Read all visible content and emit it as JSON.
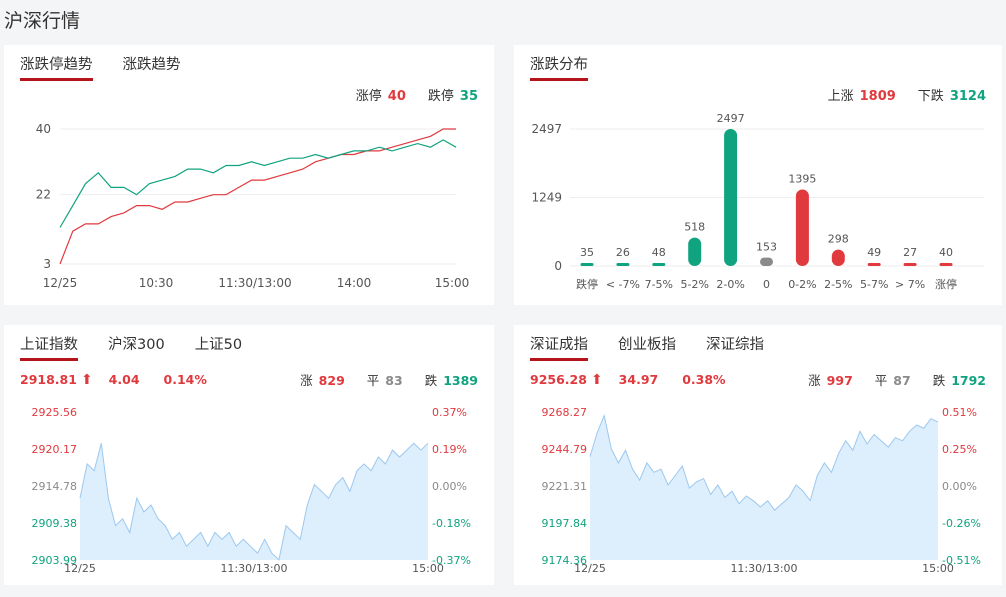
{
  "page_title": "沪深行情",
  "colors": {
    "up": "#e0393e",
    "down": "#10a37f",
    "flat": "#8a8a8a",
    "accent": "#b5141b",
    "area": "#ddeefc"
  },
  "limit_trend": {
    "tabs": [
      {
        "label": "涨跌停趋势",
        "active": true
      },
      {
        "label": "涨跌趋势",
        "active": false
      }
    ],
    "legend": {
      "up_label": "涨停",
      "up_value": "40",
      "down_label": "跌停",
      "down_value": "35"
    },
    "chart_data": {
      "type": "line",
      "y_ticks": [
        "40",
        "22",
        "3"
      ],
      "ylim": [
        3,
        40
      ],
      "x_ticks": [
        "12/25",
        "10:30",
        "11:30/13:00",
        "14:00",
        "15:00"
      ],
      "series": [
        {
          "color": "#e0393e",
          "values": [
            3,
            12,
            14,
            14,
            16,
            17,
            19,
            19,
            18,
            20,
            20,
            21,
            22,
            22,
            24,
            26,
            26,
            27,
            28,
            29,
            31,
            32,
            33,
            33,
            34,
            34,
            35,
            36,
            37,
            38,
            40,
            40
          ]
        },
        {
          "color": "#10a37f",
          "values": [
            13,
            19,
            25,
            28,
            24,
            24,
            22,
            25,
            26,
            27,
            29,
            29,
            28,
            30,
            30,
            31,
            30,
            31,
            32,
            32,
            33,
            32,
            33,
            34,
            34,
            35,
            34,
            35,
            36,
            35,
            37,
            35
          ]
        }
      ]
    }
  },
  "distribution": {
    "tabs": [
      {
        "label": "涨跌分布",
        "active": true
      }
    ],
    "legend": {
      "up_label": "上涨",
      "up_value": "1809",
      "down_label": "下跌",
      "down_value": "3124"
    },
    "chart_data": {
      "type": "bar",
      "y_ticks": [
        "2497",
        "1249",
        "0"
      ],
      "ylim": [
        0,
        2497
      ],
      "categories": [
        "跌停",
        "< -7%",
        "7-5%",
        "5-2%",
        "2-0%",
        "0",
        "0-2%",
        "2-5%",
        "5-7%",
        "> 7%",
        "涨停"
      ],
      "values": [
        35,
        26,
        48,
        518,
        2497,
        153,
        1395,
        298,
        49,
        27,
        40
      ],
      "labels": [
        "35",
        "26",
        "48",
        "518",
        "2497",
        "153",
        "1395",
        "298",
        "49",
        "27",
        "40"
      ],
      "bar_colors": [
        "#10a37f",
        "#10a37f",
        "#10a37f",
        "#10a37f",
        "#10a37f",
        "#8a8a8a",
        "#e0393e",
        "#e0393e",
        "#e0393e",
        "#e0393e",
        "#e0393e"
      ]
    }
  },
  "sh_index": {
    "tabs": [
      {
        "label": "上证指数",
        "active": true
      },
      {
        "label": "沪深300",
        "active": false
      },
      {
        "label": "上证50",
        "active": false
      }
    ],
    "price": "2918.81",
    "arrow": "⬆",
    "change": "4.04",
    "pct": "0.14%",
    "stats": {
      "up_label": "涨",
      "up_value": "829",
      "flat_label": "平",
      "flat_value": "83",
      "down_label": "跌",
      "down_value": "1389"
    },
    "chart_data": {
      "type": "area",
      "y_ticks_left": [
        "2925.56",
        "2920.17",
        "2914.78",
        "2909.38",
        "2903.99"
      ],
      "y_ticks_right": [
        "0.37%",
        "0.19%",
        "0.00%",
        "-0.18%",
        "-0.37%"
      ],
      "ylim": [
        2903.99,
        2925.56
      ],
      "x_ticks": [
        "12/25",
        "11:30/13:00",
        "15:00"
      ],
      "values": [
        2913,
        2918,
        2917,
        2921,
        2913,
        2909,
        2910,
        2908,
        2913,
        2911,
        2912,
        2910,
        2909,
        2907,
        2908,
        2906,
        2907,
        2908,
        2906,
        2908,
        2907,
        2908,
        2906,
        2907,
        2906,
        2905,
        2907,
        2905,
        2904,
        2909,
        2908,
        2907,
        2912,
        2915,
        2914,
        2913,
        2915,
        2916,
        2914,
        2917,
        2918,
        2917,
        2919,
        2918,
        2920,
        2919,
        2920,
        2921,
        2920,
        2921
      ]
    }
  },
  "sz_index": {
    "tabs": [
      {
        "label": "深证成指",
        "active": true
      },
      {
        "label": "创业板指",
        "active": false
      },
      {
        "label": "深证综指",
        "active": false
      }
    ],
    "price": "9256.28",
    "arrow": "⬆",
    "change": "34.97",
    "pct": "0.38%",
    "stats": {
      "up_label": "涨",
      "up_value": "997",
      "flat_label": "平",
      "flat_value": "87",
      "down_label": "跌",
      "down_value": "1792"
    },
    "chart_data": {
      "type": "area",
      "y_ticks_left": [
        "9268.27",
        "9244.79",
        "9221.31",
        "9197.84",
        "9174.36"
      ],
      "y_ticks_right": [
        "0.51%",
        "0.25%",
        "0.00%",
        "-0.26%",
        "-0.51%"
      ],
      "ylim": [
        9174.36,
        9268.27
      ],
      "x_ticks": [
        "12/25",
        "11:30/13:00",
        "15:00"
      ],
      "values": [
        9240,
        9255,
        9266,
        9245,
        9236,
        9244,
        9232,
        9225,
        9236,
        9230,
        9232,
        9222,
        9228,
        9234,
        9220,
        9224,
        9226,
        9216,
        9222,
        9214,
        9218,
        9210,
        9215,
        9212,
        9208,
        9212,
        9206,
        9210,
        9214,
        9222,
        9218,
        9212,
        9228,
        9236,
        9230,
        9242,
        9250,
        9244,
        9256,
        9248,
        9254,
        9250,
        9246,
        9252,
        9250,
        9256,
        9260,
        9258,
        9264,
        9262
      ]
    }
  }
}
